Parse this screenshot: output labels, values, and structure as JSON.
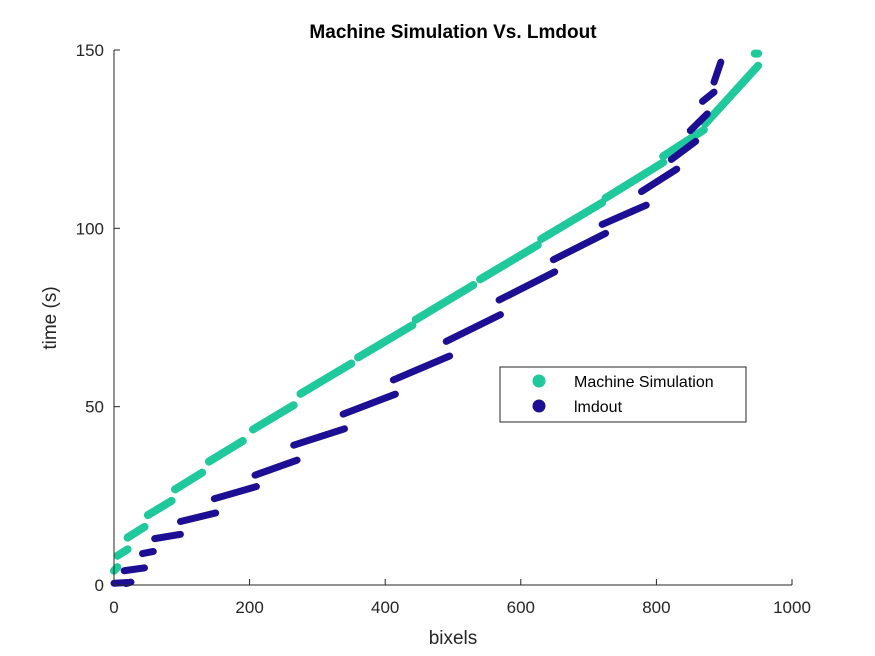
{
  "chart_data": {
    "type": "scatter",
    "title": "Machine Simulation Vs. Lmdout",
    "xlabel": "bixels",
    "ylabel": "time (s)",
    "xlim": [
      0,
      1000
    ],
    "ylim": [
      0,
      150
    ],
    "xticks": [
      0,
      200,
      400,
      600,
      800,
      1000
    ],
    "xtick_labels": [
      "0",
      "200",
      "400",
      "600",
      "800",
      "1000"
    ],
    "yticks": [
      0,
      50,
      100,
      150
    ],
    "ytick_labels": [
      "0",
      "50",
      "100",
      "150"
    ],
    "grid": false,
    "legend_position": "center-right",
    "series": [
      {
        "name": "Machine Simulation",
        "color": "#1fc99c",
        "segments": [
          {
            "x": [
              0,
              5
            ],
            "y": [
              4.0,
              5.0
            ]
          },
          {
            "x": [
              5,
              20
            ],
            "y": [
              8.2,
              10.0
            ]
          },
          {
            "x": [
              20,
              45
            ],
            "y": [
              13.3,
              16.3
            ]
          },
          {
            "x": [
              50,
              85
            ],
            "y": [
              19.6,
              23.6
            ]
          },
          {
            "x": [
              90,
              130
            ],
            "y": [
              26.8,
              31.5
            ]
          },
          {
            "x": [
              140,
              190
            ],
            "y": [
              34.6,
              40.4
            ]
          },
          {
            "x": [
              205,
              265
            ],
            "y": [
              43.6,
              50.4
            ]
          },
          {
            "x": [
              275,
              350
            ],
            "y": [
              53.6,
              62.1
            ]
          },
          {
            "x": [
              360,
              440
            ],
            "y": [
              63.8,
              72.8
            ]
          },
          {
            "x": [
              445,
              530
            ],
            "y": [
              74.4,
              84.1
            ]
          },
          {
            "x": [
              540,
              625
            ],
            "y": [
              85.7,
              95.3
            ]
          },
          {
            "x": [
              630,
              720
            ],
            "y": [
              97.0,
              107.2
            ]
          },
          {
            "x": [
              725,
              810
            ],
            "y": [
              108.5,
              118.5
            ]
          },
          {
            "x": [
              810,
              870
            ],
            "y": [
              120.2,
              127.6
            ]
          },
          {
            "x": [
              872,
              950
            ],
            "y": [
              129.3,
              145.6
            ]
          },
          {
            "x": [
              945,
              950
            ],
            "y": [
              149.0,
              149.0
            ]
          }
        ]
      },
      {
        "name": "lmdout",
        "color": "#1d0f93",
        "segments": [
          {
            "x": [
              0,
              20
            ],
            "y": [
              0.5,
              0.7
            ]
          },
          {
            "x": [
              18,
              25
            ],
            "y": [
              0.4,
              0.8
            ]
          },
          {
            "x": [
              15,
              45
            ],
            "y": [
              4.0,
              4.8
            ]
          },
          {
            "x": [
              42,
              58
            ],
            "y": [
              8.8,
              9.4
            ]
          },
          {
            "x": [
              60,
              98
            ],
            "y": [
              13.0,
              14.2
            ]
          },
          {
            "x": [
              98,
              150
            ],
            "y": [
              17.8,
              20.2
            ]
          },
          {
            "x": [
              148,
              210
            ],
            "y": [
              24.2,
              27.6
            ]
          },
          {
            "x": [
              208,
              270
            ],
            "y": [
              30.8,
              35.0
            ]
          },
          {
            "x": [
              265,
              340
            ],
            "y": [
              39.2,
              43.8
            ]
          },
          {
            "x": [
              338,
              415
            ],
            "y": [
              47.9,
              53.5
            ]
          },
          {
            "x": [
              412,
              495
            ],
            "y": [
              57.5,
              64.2
            ]
          },
          {
            "x": [
              490,
              570
            ],
            "y": [
              68.3,
              75.8
            ]
          },
          {
            "x": [
              568,
              650
            ],
            "y": [
              79.9,
              87.8
            ]
          },
          {
            "x": [
              648,
              725
            ],
            "y": [
              91.2,
              98.6
            ]
          },
          {
            "x": [
              720,
              785
            ],
            "y": [
              101.1,
              106.5
            ]
          },
          {
            "x": [
              778,
              830
            ],
            "y": [
              110.3,
              116.6
            ]
          },
          {
            "x": [
              822,
              858
            ],
            "y": [
              119.3,
              124.4
            ]
          },
          {
            "x": [
              850,
              875
            ],
            "y": [
              127.4,
              132.1
            ]
          },
          {
            "x": [
              868,
              885
            ],
            "y": [
              135.6,
              138.2
            ]
          },
          {
            "x": [
              885,
              895
            ],
            "y": [
              141.0,
              146.6
            ]
          }
        ]
      }
    ]
  }
}
